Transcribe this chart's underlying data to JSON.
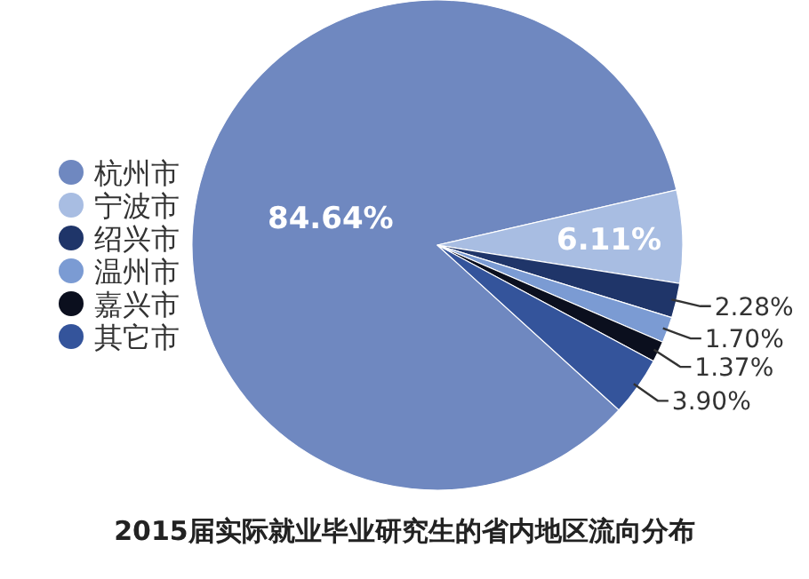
{
  "chart_data": {
    "type": "pie",
    "title": "2015届实际就业毕业研究生的省内地区流向分布",
    "categories": [
      "杭州市",
      "宁波市",
      "绍兴市",
      "温州市",
      "嘉兴市",
      "其它市"
    ],
    "values": [
      84.64,
      6.11,
      2.28,
      1.7,
      1.37,
      3.9
    ],
    "value_labels": [
      "84.64%",
      "6.11%",
      "2.28%",
      "1.70%",
      "1.37%",
      "3.90%"
    ],
    "colors": [
      "#6f88c0",
      "#a8bde2",
      "#1f3569",
      "#7b9bd3",
      "#0b0f1e",
      "#34549b"
    ],
    "legend": "left"
  }
}
